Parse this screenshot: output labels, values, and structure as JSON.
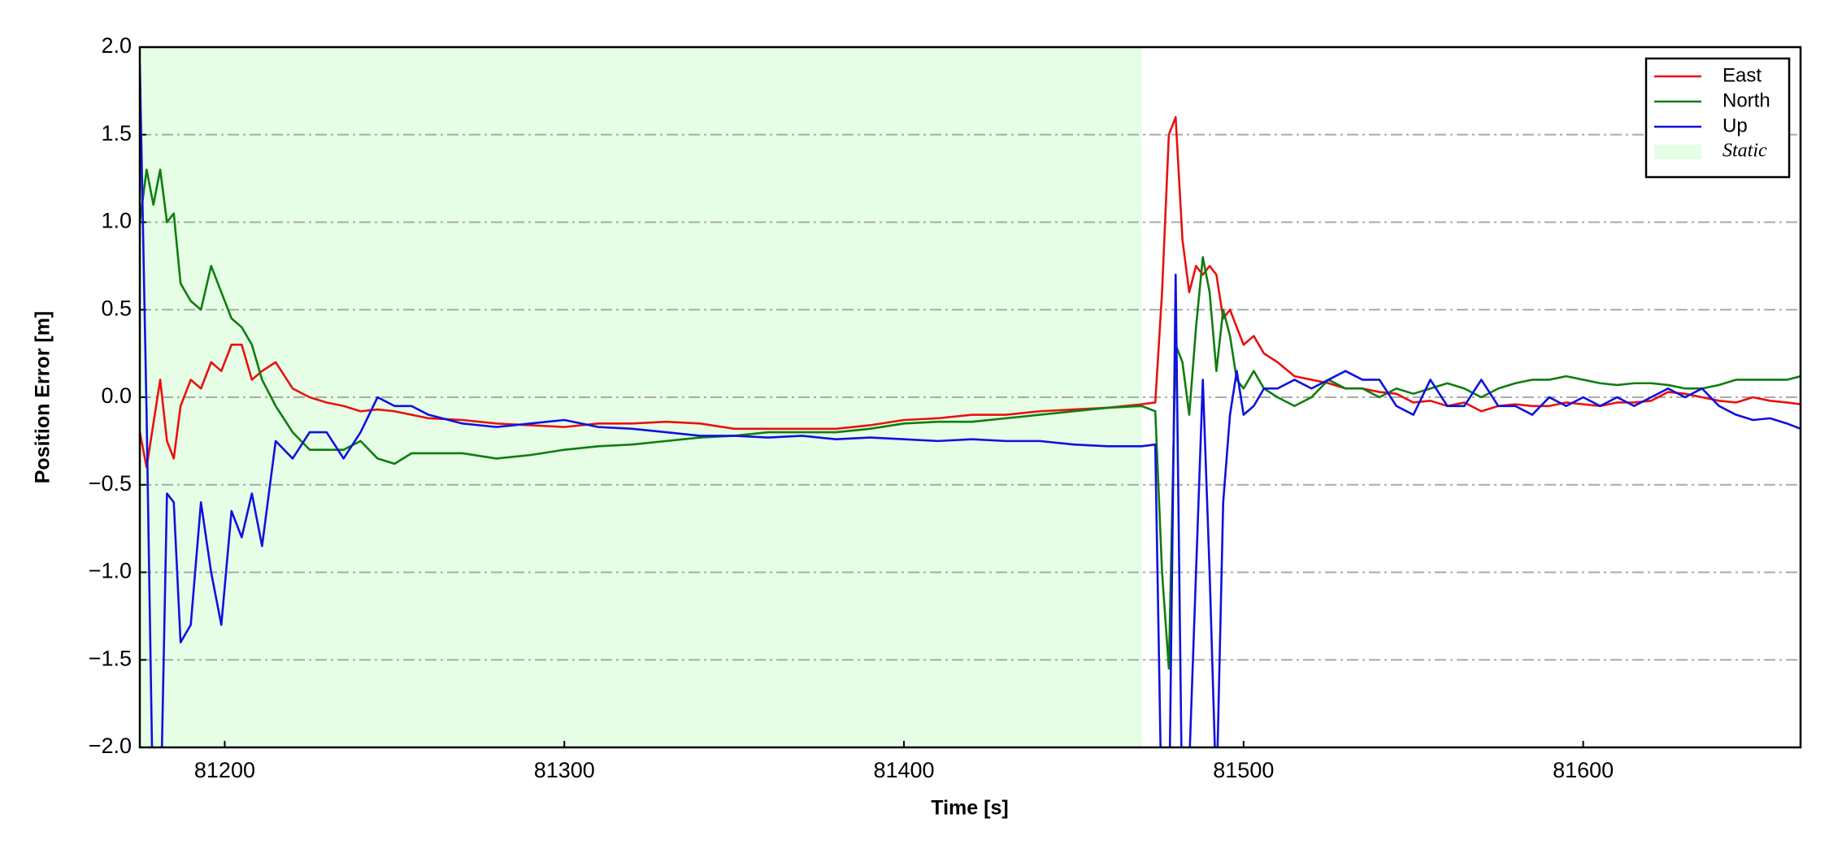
{
  "chart_data": {
    "type": "line",
    "xlabel": "Time [s]",
    "ylabel": "Position Error [m]",
    "x": [
      81175,
      81177,
      81179,
      81181,
      81183,
      81185,
      81187,
      81190,
      81193,
      81196,
      81199,
      81202,
      81205,
      81208,
      81211,
      81215,
      81220,
      81225,
      81230,
      81235,
      81240,
      81245,
      81250,
      81255,
      81260,
      81270,
      81280,
      81290,
      81300,
      81310,
      81320,
      81330,
      81340,
      81350,
      81360,
      81370,
      81380,
      81390,
      81400,
      81410,
      81420,
      81430,
      81440,
      81450,
      81460,
      81470,
      81474,
      81476,
      81478,
      81480,
      81482,
      81484,
      81486,
      81488,
      81490,
      81492,
      81494,
      81496,
      81498,
      81500,
      81503,
      81506,
      81510,
      81515,
      81520,
      81525,
      81530,
      81535,
      81540,
      81545,
      81550,
      81555,
      81560,
      81565,
      81570,
      81575,
      81580,
      81585,
      81590,
      81595,
      81600,
      81605,
      81610,
      81615,
      81620,
      81625,
      81630,
      81635,
      81640,
      81645,
      81650,
      81655,
      81660,
      81664
    ],
    "series": [
      {
        "name": "East",
        "color": "#e8110f",
        "values": [
          -0.2,
          -0.4,
          -0.15,
          0.1,
          -0.25,
          -0.35,
          -0.05,
          0.1,
          0.05,
          0.2,
          0.15,
          0.3,
          0.3,
          0.1,
          0.15,
          0.2,
          0.05,
          0.0,
          -0.03,
          -0.05,
          -0.08,
          -0.07,
          -0.08,
          -0.1,
          -0.12,
          -0.13,
          -0.15,
          -0.16,
          -0.17,
          -0.15,
          -0.15,
          -0.14,
          -0.15,
          -0.18,
          -0.18,
          -0.18,
          -0.18,
          -0.16,
          -0.13,
          -0.12,
          -0.1,
          -0.1,
          -0.08,
          -0.07,
          -0.06,
          -0.04,
          -0.03,
          0.6,
          1.5,
          1.6,
          0.9,
          0.6,
          0.75,
          0.7,
          0.75,
          0.7,
          0.45,
          0.5,
          0.4,
          0.3,
          0.35,
          0.25,
          0.2,
          0.12,
          0.1,
          0.08,
          0.05,
          0.05,
          0.03,
          0.02,
          -0.03,
          -0.02,
          -0.05,
          -0.03,
          -0.08,
          -0.05,
          -0.04,
          -0.05,
          -0.05,
          -0.03,
          -0.04,
          -0.05,
          -0.03,
          -0.03,
          -0.02,
          0.03,
          0.02,
          0.0,
          -0.02,
          -0.03,
          0.0,
          -0.02,
          -0.03,
          -0.04
        ]
      },
      {
        "name": "North",
        "color": "#0f7d0f",
        "values": [
          1.0,
          1.3,
          1.1,
          1.3,
          1.0,
          1.05,
          0.65,
          0.55,
          0.5,
          0.75,
          0.6,
          0.45,
          0.4,
          0.3,
          0.1,
          -0.05,
          -0.2,
          -0.3,
          -0.3,
          -0.3,
          -0.25,
          -0.35,
          -0.38,
          -0.32,
          -0.32,
          -0.32,
          -0.35,
          -0.33,
          -0.3,
          -0.28,
          -0.27,
          -0.25,
          -0.23,
          -0.22,
          -0.2,
          -0.2,
          -0.2,
          -0.18,
          -0.15,
          -0.14,
          -0.14,
          -0.12,
          -0.1,
          -0.08,
          -0.06,
          -0.05,
          -0.08,
          -1.0,
          -1.55,
          0.3,
          0.2,
          -0.1,
          0.4,
          0.8,
          0.6,
          0.15,
          0.5,
          0.35,
          0.1,
          0.05,
          0.15,
          0.05,
          0.0,
          -0.05,
          0.0,
          0.1,
          0.05,
          0.05,
          0.0,
          0.05,
          0.02,
          0.05,
          0.08,
          0.05,
          0.0,
          0.05,
          0.08,
          0.1,
          0.1,
          0.12,
          0.1,
          0.08,
          0.07,
          0.08,
          0.08,
          0.07,
          0.05,
          0.05,
          0.07,
          0.1,
          0.1,
          0.1,
          0.1,
          0.12
        ]
      },
      {
        "name": "Up",
        "color": "#0f11e0",
        "values": [
          1.9,
          -0.1,
          -2.5,
          -2.5,
          -0.55,
          -0.6,
          -1.4,
          -1.3,
          -0.6,
          -1.0,
          -1.3,
          -0.65,
          -0.8,
          -0.55,
          -0.85,
          -0.25,
          -0.35,
          -0.2,
          -0.2,
          -0.35,
          -0.2,
          0.0,
          -0.05,
          -0.05,
          -0.1,
          -0.15,
          -0.17,
          -0.15,
          -0.13,
          -0.17,
          -0.18,
          -0.2,
          -0.22,
          -0.22,
          -0.23,
          -0.22,
          -0.24,
          -0.23,
          -0.24,
          -0.25,
          -0.24,
          -0.25,
          -0.25,
          -0.27,
          -0.28,
          -0.28,
          -0.27,
          -2.5,
          -2.5,
          0.7,
          -2.5,
          -2.1,
          -1.0,
          0.1,
          -1.0,
          -2.3,
          -0.6,
          -0.1,
          0.15,
          -0.1,
          -0.05,
          0.05,
          0.05,
          0.1,
          0.05,
          0.1,
          0.15,
          0.1,
          0.1,
          -0.05,
          -0.1,
          0.1,
          -0.05,
          -0.05,
          0.1,
          -0.05,
          -0.05,
          -0.1,
          0.0,
          -0.05,
          0.0,
          -0.05,
          0.0,
          -0.05,
          0.0,
          0.05,
          0.0,
          0.05,
          -0.05,
          -0.1,
          -0.13,
          -0.12,
          -0.15,
          -0.18
        ]
      }
    ],
    "spans": [
      {
        "name": "Static",
        "color": "#e6fde6",
        "x0": 81175,
        "x1": 81470
      }
    ],
    "xlim": [
      81175,
      81664
    ],
    "xticks": [
      81200,
      81300,
      81400,
      81500,
      81600
    ],
    "ylim": [
      -2,
      2
    ],
    "yticks": [
      {
        "value": -2,
        "label": "−2.0"
      },
      {
        "value": -1.5,
        "label": "−1.5"
      },
      {
        "value": -1,
        "label": "−1.0"
      },
      {
        "value": -0.5,
        "label": "−0.5"
      },
      {
        "value": 0,
        "label": "0.0"
      },
      0.5,
      {
        "value": 1,
        "label": "1.0"
      },
      1.5,
      {
        "value": 2,
        "label": "2.0"
      }
    ],
    "grid": "y",
    "legend": "upper right"
  }
}
